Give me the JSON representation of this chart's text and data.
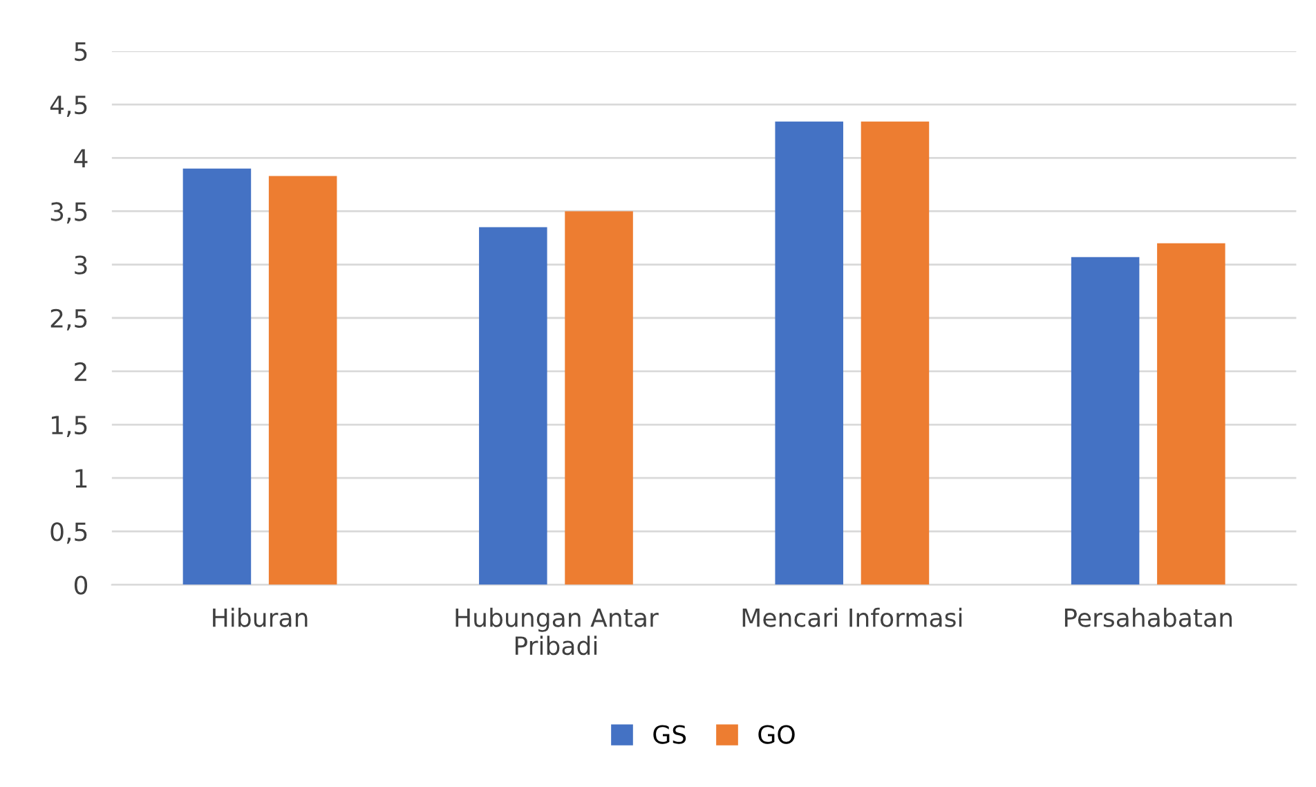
{
  "chart_data": {
    "type": "bar",
    "categories": [
      "Hiburan",
      "Hubungan Antar\nPribadi",
      "Mencari Informasi",
      "Persahabatan"
    ],
    "series": [
      {
        "name": "GS",
        "color": "#4472c4",
        "values": [
          3.9,
          3.35,
          4.34,
          3.07
        ]
      },
      {
        "name": "GO",
        "color": "#ed7d31",
        "values": [
          3.83,
          3.5,
          4.34,
          3.2
        ]
      }
    ],
    "ylim": [
      0,
      5
    ],
    "yticks": [
      0,
      {
        "value": 0.5,
        "label": "0,5"
      },
      1,
      {
        "value": 1.5,
        "label": "1,5"
      },
      2,
      {
        "value": 2.5,
        "label": "2,5"
      },
      3,
      {
        "value": 3.5,
        "label": "3,5"
      },
      4,
      {
        "value": 4.5,
        "label": "4,5"
      },
      5
    ],
    "grid": "y",
    "legend": "bottom"
  }
}
